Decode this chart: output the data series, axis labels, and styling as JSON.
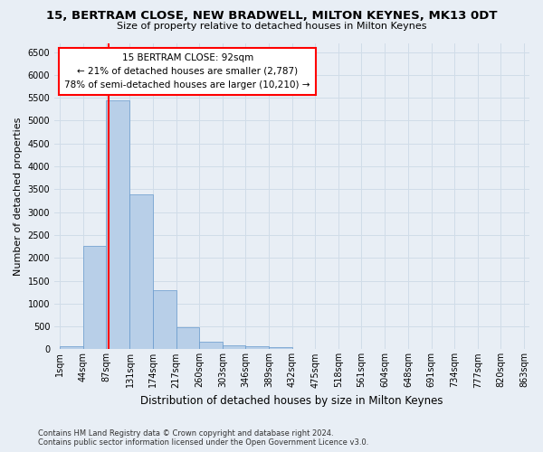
{
  "title": "15, BERTRAM CLOSE, NEW BRADWELL, MILTON KEYNES, MK13 0DT",
  "subtitle": "Size of property relative to detached houses in Milton Keynes",
  "xlabel": "Distribution of detached houses by size in Milton Keynes",
  "ylabel": "Number of detached properties",
  "footer_line1": "Contains HM Land Registry data © Crown copyright and database right 2024.",
  "footer_line2": "Contains public sector information licensed under the Open Government Licence v3.0.",
  "bin_edges": [
    1,
    44,
    87,
    131,
    174,
    217,
    260,
    303,
    346,
    389,
    432,
    475,
    518,
    561,
    604,
    648,
    691,
    734,
    777,
    820,
    863
  ],
  "bin_labels": [
    "1sqm",
    "44sqm",
    "87sqm",
    "131sqm",
    "174sqm",
    "217sqm",
    "260sqm",
    "303sqm",
    "346sqm",
    "389sqm",
    "432sqm",
    "475sqm",
    "518sqm",
    "561sqm",
    "604sqm",
    "648sqm",
    "691sqm",
    "734sqm",
    "777sqm",
    "820sqm",
    "863sqm"
  ],
  "bar_values": [
    75,
    2270,
    5450,
    3380,
    1300,
    480,
    160,
    90,
    65,
    40,
    0,
    0,
    0,
    0,
    0,
    0,
    0,
    0,
    0,
    0
  ],
  "bar_color": "#b8cfe8",
  "bar_edge_color": "#6699cc",
  "grid_color": "#d0dce8",
  "annotation_line1": "15 BERTRAM CLOSE: 92sqm",
  "annotation_line2": "← 21% of detached houses are smaller (2,787)",
  "annotation_line3": "78% of semi-detached houses are larger (10,210) →",
  "annotation_box_facecolor": "white",
  "annotation_box_edgecolor": "red",
  "property_line_x": 92,
  "property_line_color": "red",
  "ylim": [
    0,
    6700
  ],
  "yticks": [
    0,
    500,
    1000,
    1500,
    2000,
    2500,
    3000,
    3500,
    4000,
    4500,
    5000,
    5500,
    6000,
    6500
  ],
  "background_color": "#e8eef5",
  "title_fontsize": 9.5,
  "subtitle_fontsize": 8,
  "ylabel_fontsize": 8,
  "xlabel_fontsize": 8.5,
  "tick_fontsize": 7,
  "footer_fontsize": 6
}
